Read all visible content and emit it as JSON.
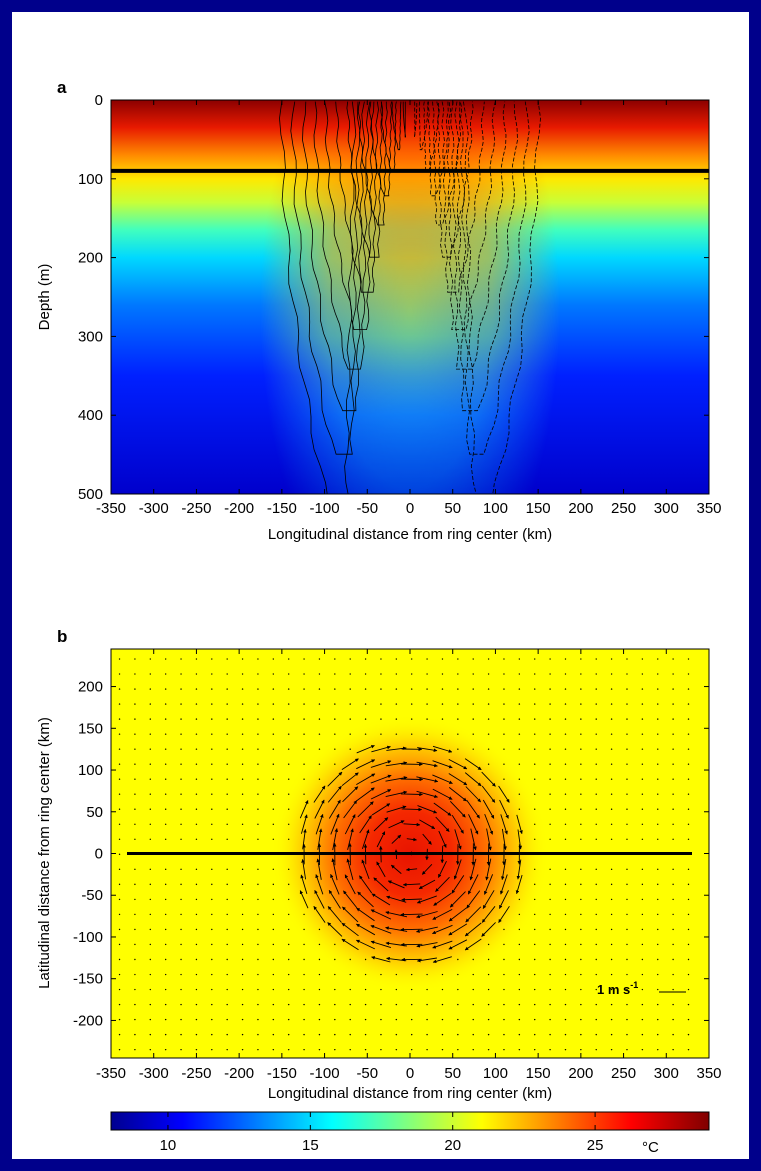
{
  "chart_data": [
    {
      "panel": "a",
      "type": "heatmap",
      "title": "",
      "xlabel": "Longitudinal distance from ring center (km)",
      "ylabel": "Depth (m)",
      "xlim": [
        -350,
        350
      ],
      "ylim": [
        500,
        0
      ],
      "x_ticks": [
        "-350",
        "-300",
        "-250",
        "-200",
        "-150",
        "-100",
        "-50",
        "0",
        "50",
        "100",
        "150",
        "200",
        "250",
        "300",
        "350"
      ],
      "y_ticks": [
        "0",
        "100",
        "200",
        "300",
        "400",
        "500"
      ],
      "section_line_depth": 90,
      "eddy_half_width_km": 150,
      "colormap": "jet"
    },
    {
      "panel": "b",
      "type": "heatmap",
      "title": "",
      "xlabel": "Longitudinal distance from ring center (km)",
      "ylabel": "Latitudinal distance from ring center (km)",
      "xlim": [
        -350,
        350
      ],
      "ylim": [
        -245,
        245
      ],
      "x_ticks": [
        "-350",
        "-300",
        "-250",
        "-200",
        "-150",
        "-100",
        "-50",
        "0",
        "50",
        "100",
        "150",
        "200",
        "250",
        "300",
        "350"
      ],
      "y_ticks": [
        "200",
        "150",
        "100",
        "50",
        "0",
        "-50",
        "-100",
        "-150",
        "-200"
      ],
      "section_line_y": 0,
      "ring_radius_km": 130,
      "vector_scale_label": "1 m s",
      "vector_scale_sup": "-1",
      "colormap": "jet"
    }
  ],
  "colorbar": {
    "range": [
      8,
      29
    ],
    "ticks": [
      10,
      15,
      20,
      25
    ],
    "tick_labels": [
      "10",
      "15",
      "20",
      "25"
    ],
    "unit": "°C"
  }
}
